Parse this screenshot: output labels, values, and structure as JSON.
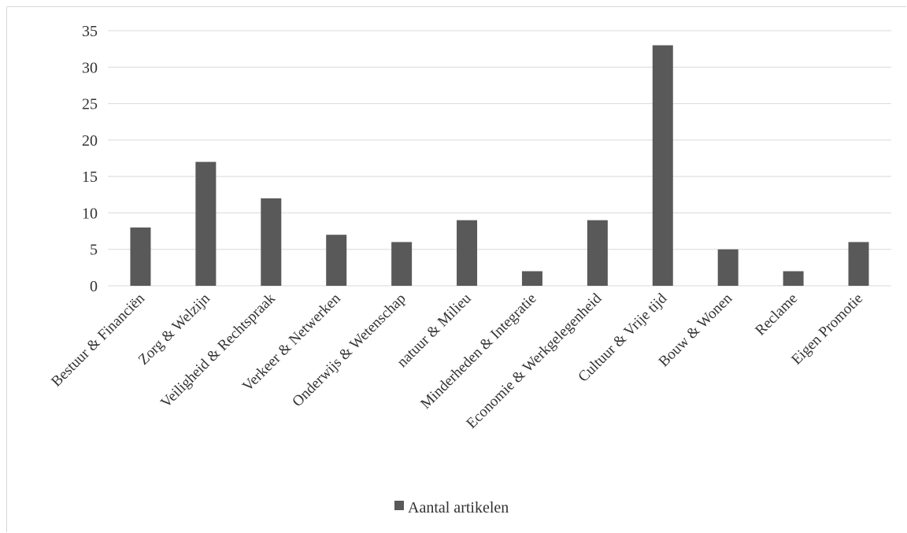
{
  "chart_data": {
    "type": "bar",
    "title": "",
    "xlabel": "",
    "ylabel": "",
    "categories": [
      "Bestuur & Financiën",
      "Zorg & Welzijn",
      "Veiligheid & Rechtspraak",
      "Verkeer & Netwerken",
      "Onderwijs & Wetenschap",
      "natuur & Milieu",
      "Minderheden & Integratie",
      "Economie & Werkgelegenheid",
      "Cultuur & Vrije tijd",
      "Bouw & Wonen",
      "Reclame",
      "Eigen Promotie"
    ],
    "series": [
      {
        "name": "Aantal artikelen",
        "values": [
          8,
          17,
          12,
          7,
          6,
          9,
          2,
          9,
          33,
          5,
          2,
          6
        ],
        "color": "#595959"
      }
    ],
    "ylim": [
      0,
      35
    ],
    "yticks": [
      "0",
      "5",
      "10",
      "15",
      "20",
      "25",
      "30",
      "35"
    ],
    "grid": true,
    "legend_position": "bottom"
  }
}
